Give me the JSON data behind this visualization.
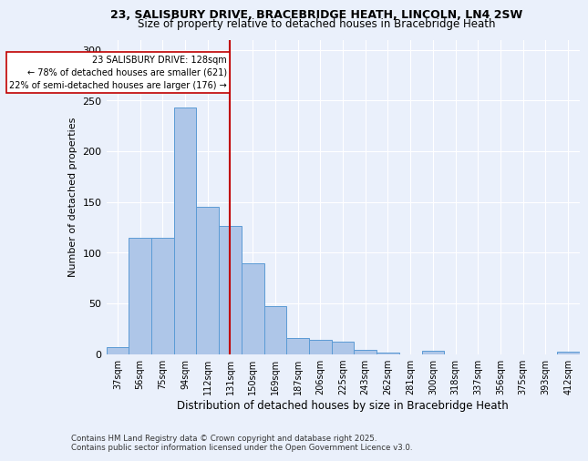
{
  "title_line1": "23, SALISBURY DRIVE, BRACEBRIDGE HEATH, LINCOLN, LN4 2SW",
  "title_line2": "Size of property relative to detached houses in Bracebridge Heath",
  "xlabel": "Distribution of detached houses by size in Bracebridge Heath",
  "ylabel": "Number of detached properties",
  "footer_line1": "Contains HM Land Registry data © Crown copyright and database right 2025.",
  "footer_line2": "Contains public sector information licensed under the Open Government Licence v3.0.",
  "annotation_line1": "23 SALISBURY DRIVE: 128sqm",
  "annotation_line2": "← 78% of detached houses are smaller (621)",
  "annotation_line3": "22% of semi-detached houses are larger (176) →",
  "bar_categories": [
    "37sqm",
    "56sqm",
    "75sqm",
    "94sqm",
    "112sqm",
    "131sqm",
    "150sqm",
    "169sqm",
    "187sqm",
    "206sqm",
    "225sqm",
    "243sqm",
    "262sqm",
    "281sqm",
    "300sqm",
    "318sqm",
    "337sqm",
    "356sqm",
    "375sqm",
    "393sqm",
    "412sqm"
  ],
  "bar_values": [
    7,
    115,
    115,
    243,
    145,
    126,
    89,
    47,
    16,
    14,
    12,
    4,
    1,
    0,
    3,
    0,
    0,
    0,
    0,
    0,
    2
  ],
  "bar_color": "#aec6e8",
  "bar_edge_color": "#5b9bd5",
  "ref_line_index": 5,
  "ref_line_color": "#c00000",
  "ylim": [
    0,
    310
  ],
  "yticks": [
    0,
    50,
    100,
    150,
    200,
    250,
    300
  ],
  "bg_color": "#eaf0fb",
  "plot_bg_color": "#eaf0fb",
  "grid_color": "#ffffff",
  "annotation_box_color": "#c00000"
}
